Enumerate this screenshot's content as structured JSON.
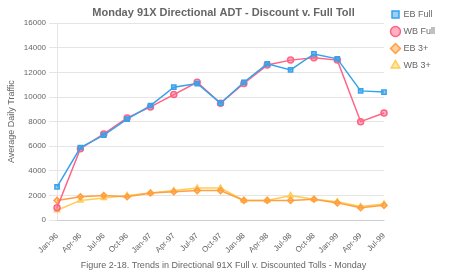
{
  "chart_data": {
    "type": "line",
    "title": "Monday 91X Directional ADT - Discount v. Full Toll",
    "ylabel": "Average Daily Traffic",
    "caption": "Figure 2-18. Trends in Directional 91X Full v. Discounted Tolls - Monday",
    "categories": [
      "Jan-96",
      "Apr-96",
      "Jul-96",
      "Oct-96",
      "Jan-97",
      "Apr-97",
      "Jul-97",
      "Oct-97",
      "Jan-98",
      "Apr-98",
      "Jul-98",
      "Oct-98",
      "Jan-99",
      "Apr-99",
      "Jul-99"
    ],
    "series": [
      {
        "name": "EB Full",
        "marker": "square",
        "values": [
          2700,
          5900,
          6900,
          8200,
          9300,
          10800,
          11100,
          9500,
          11200,
          12700,
          12200,
          13500,
          13100,
          10500,
          10400
        ]
      },
      {
        "name": "WB Full",
        "marker": "circle",
        "values": [
          1000,
          5800,
          7000,
          8300,
          9200,
          10200,
          11200,
          9500,
          11100,
          12600,
          13000,
          13200,
          13000,
          8000,
          8700
        ]
      },
      {
        "name": "EB 3+",
        "marker": "diamond",
        "values": [
          1600,
          1900,
          2000,
          1900,
          2200,
          2300,
          2400,
          2400,
          1600,
          1600,
          1600,
          1700,
          1400,
          1000,
          1200
        ]
      },
      {
        "name": "WB 3+",
        "marker": "triangle",
        "values": [
          800,
          1600,
          1800,
          2000,
          2200,
          2400,
          2600,
          2600,
          1600,
          1600,
          2000,
          1700,
          1500,
          1100,
          1300
        ]
      }
    ],
    "ylim": [
      0,
      16000
    ],
    "yticks": [
      0,
      2000,
      4000,
      6000,
      8000,
      10000,
      12000,
      14000,
      16000
    ],
    "grid": true,
    "legend": "right"
  }
}
